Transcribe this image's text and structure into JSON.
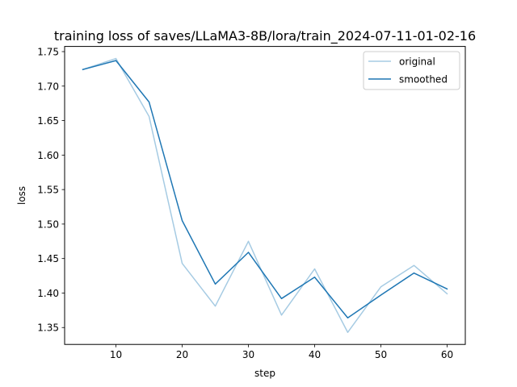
{
  "chart_data": {
    "type": "line",
    "title": "training loss of saves/LLaMA3-8B/lora/train_2024-07-11-01-02-16",
    "xlabel": "step",
    "ylabel": "loss",
    "xlim": [
      2.25,
      62.75
    ],
    "ylim": [
      1.3255,
      1.7575
    ],
    "xticks": [
      10,
      20,
      30,
      40,
      50,
      60
    ],
    "yticks": [
      1.35,
      1.4,
      1.45,
      1.5,
      1.55,
      1.6,
      1.65,
      1.7,
      1.75
    ],
    "ytick_labels": [
      "1.35",
      "1.40",
      "1.45",
      "1.50",
      "1.55",
      "1.60",
      "1.65",
      "1.70",
      "1.75"
    ],
    "grid": false,
    "legend_position": "top-right",
    "x": [
      5,
      10,
      15,
      20,
      25,
      30,
      35,
      40,
      45,
      50,
      55,
      60
    ],
    "series": [
      {
        "name": "original",
        "color": "#a6cbe3",
        "values": [
          1.724,
          1.74,
          1.656,
          1.443,
          1.381,
          1.475,
          1.368,
          1.435,
          1.343,
          1.409,
          1.44,
          1.399
        ]
      },
      {
        "name": "smoothed",
        "color": "#1f77b4",
        "values": [
          1.724,
          1.737,
          1.677,
          1.505,
          1.413,
          1.459,
          1.392,
          1.423,
          1.364,
          1.397,
          1.429,
          1.406
        ]
      }
    ]
  }
}
